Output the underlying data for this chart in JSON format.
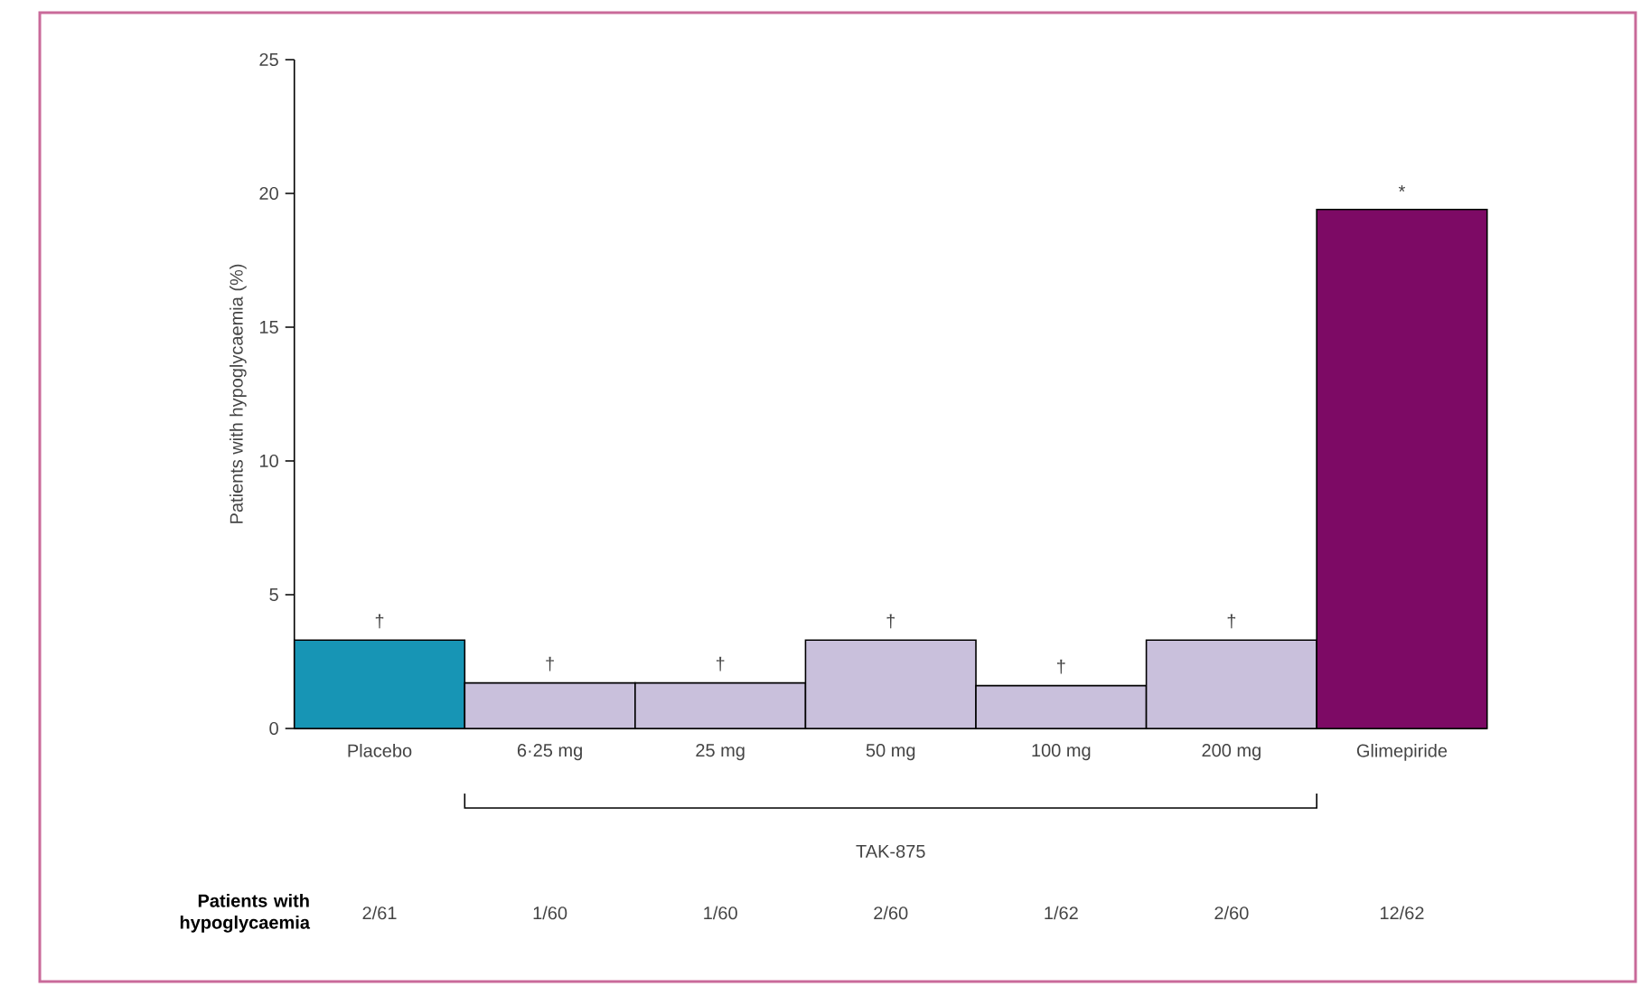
{
  "chart_data": {
    "type": "bar",
    "ylabel": "Patients with hypoglycaemia (%)",
    "categories": [
      "Placebo",
      "6·25 mg",
      "25 mg",
      "50 mg",
      "100 mg",
      "200 mg",
      "Glimepiride"
    ],
    "values": [
      3.3,
      1.7,
      1.7,
      3.3,
      1.6,
      3.3,
      19.4
    ],
    "colors": [
      "#1795b5",
      "#c9c0dc",
      "#c9c0dc",
      "#c9c0dc",
      "#c9c0dc",
      "#c9c0dc",
      "#7d0a65"
    ],
    "value_labels": [
      "2/61",
      "1/60",
      "1/60",
      "2/60",
      "1/62",
      "2/60",
      "12/62"
    ],
    "ylim": [
      0,
      25
    ],
    "yticks": [
      0,
      5,
      10,
      15,
      20,
      25
    ],
    "annotations": [
      {
        "text": "†",
        "x": "Placebo",
        "y": 3.3
      },
      {
        "text": "†",
        "x": "6·25 mg",
        "y": 1.7
      },
      {
        "text": "†",
        "x": "25 mg",
        "y": 1.7
      },
      {
        "text": "†",
        "x": "50 mg",
        "y": 3.3
      },
      {
        "text": "†",
        "x": "100 mg",
        "y": 1.6
      },
      {
        "text": "†",
        "x": "200 mg",
        "y": 3.3
      },
      {
        "text": "*",
        "x": "Glimepiride",
        "y": 19.4
      },
      "TAK-875",
      "Patients with hypoglycaemia"
    ]
  }
}
